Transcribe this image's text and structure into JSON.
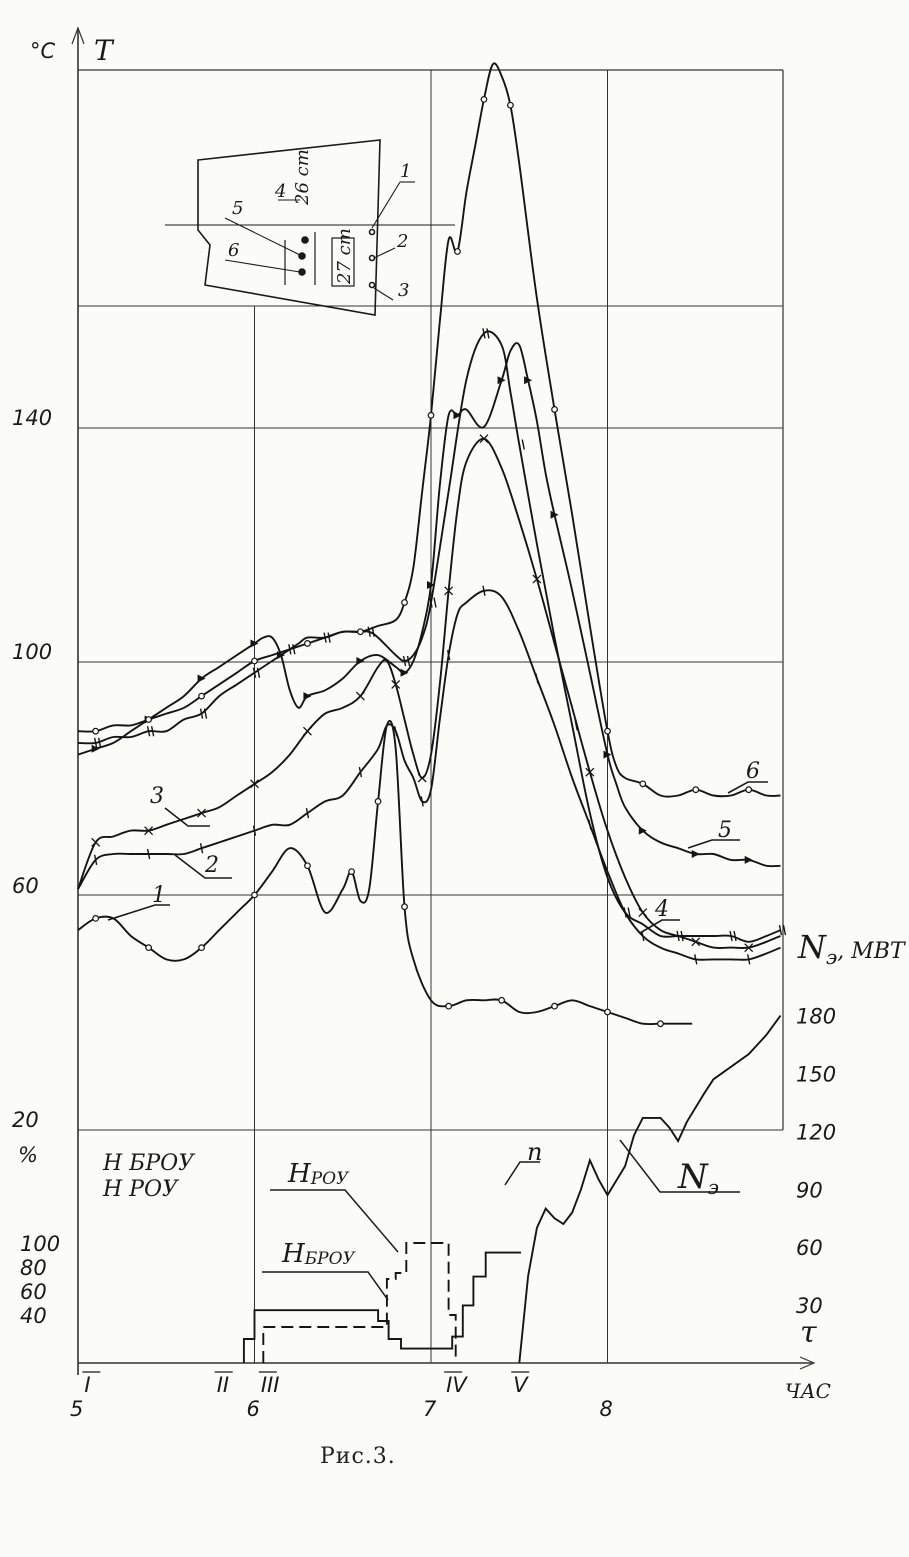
{
  "chart_data": {
    "type": "line",
    "title": "",
    "caption": "Рис.3.",
    "x_axis": {
      "label": "ЧАС",
      "ticks": [
        "5",
        "6",
        "7",
        "8"
      ],
      "range": [
        5.0,
        8.98
      ],
      "event_marks": [
        "I",
        "II",
        "III",
        "IV",
        "V"
      ]
    },
    "y_axis_temperature": {
      "unit": "°C",
      "symbol": "T",
      "ticks": [
        "20",
        "60",
        "100",
        "140"
      ],
      "range": [
        20,
        198
      ]
    },
    "y_axis_valve": {
      "unit": "%",
      "symbols": [
        "H БРОУ",
        "H РОУ"
      ],
      "ticks": [
        "40",
        "60",
        "80",
        "100"
      ],
      "range": [
        0,
        120
      ]
    },
    "y_axis_power": {
      "symbol": "τ",
      "ticks": [
        "30",
        "60",
        "90",
        "120",
        "150",
        "180"
      ],
      "range": [
        0,
        210
      ]
    },
    "labels": {
      "ne_mw": "N",
      "ne_mw_sub": "э",
      "ne_mw_unit": ", MBT",
      "ne": "N",
      "ne_sub": "э",
      "hrou": "H",
      "hrou_sub": "РОУ",
      "hbrou": "H",
      "hbrou_sub": "БРОУ",
      "n": "n"
    },
    "inset": {
      "labels": [
        "1",
        "2",
        "3",
        "4",
        "5",
        "6"
      ],
      "dim_26": "26 ст",
      "dim_27": "27 ст"
    },
    "temperature_series": [
      {
        "name": "1",
        "x": [
          5.0,
          5.1,
          5.2,
          5.3,
          5.4,
          5.5,
          5.6,
          5.7,
          5.8,
          5.9,
          6.0,
          6.1,
          6.2,
          6.3,
          6.4,
          6.5,
          6.55,
          6.6,
          6.65,
          6.7,
          6.75,
          6.8,
          6.85,
          6.9,
          7.0,
          7.1,
          7.2,
          7.3,
          7.4,
          7.5,
          7.6,
          7.7,
          7.8,
          7.9,
          8.0,
          8.1,
          8.2,
          8.3,
          8.4,
          8.48
        ],
        "y": [
          54,
          56,
          56,
          53,
          51,
          49,
          49,
          51,
          54,
          57,
          60,
          64,
          68,
          65,
          57,
          61,
          64,
          59,
          61,
          76,
          89,
          85,
          58,
          49,
          42,
          41,
          42,
          42,
          42,
          40,
          40,
          41,
          42,
          41,
          40,
          39,
          38,
          38,
          38,
          38
        ]
      },
      {
        "name": "2",
        "x": [
          5.0,
          5.1,
          5.2,
          5.3,
          5.4,
          5.5,
          5.6,
          5.7,
          5.8,
          5.9,
          6.0,
          6.1,
          6.2,
          6.3,
          6.4,
          6.5,
          6.6,
          6.7,
          6.75,
          6.8,
          6.85,
          6.9,
          6.95,
          7.0,
          7.05,
          7.1,
          7.15,
          7.2,
          7.3,
          7.4,
          7.5,
          7.6,
          7.7,
          7.8,
          7.9,
          8.0,
          8.1,
          8.2,
          8.3,
          8.4,
          8.5,
          8.6,
          8.7,
          8.8,
          8.9,
          8.98
        ],
        "y": [
          61,
          66,
          67,
          67,
          67,
          67,
          67,
          68,
          69,
          70,
          71,
          72,
          72,
          74,
          76,
          77,
          81,
          85,
          89,
          88,
          83,
          80,
          76,
          78,
          90,
          101,
          108,
          110,
          112,
          111,
          105,
          97,
          89,
          80,
          72,
          64,
          57,
          53,
          51,
          50,
          49,
          49,
          49,
          49,
          50,
          51
        ]
      },
      {
        "name": "3",
        "x": [
          5.0,
          5.1,
          5.2,
          5.3,
          5.4,
          5.5,
          5.6,
          5.7,
          5.8,
          5.9,
          6.0,
          6.1,
          6.2,
          6.3,
          6.4,
          6.5,
          6.6,
          6.7,
          6.75,
          6.8,
          6.85,
          6.9,
          6.95,
          7.0,
          7.05,
          7.1,
          7.15,
          7.2,
          7.3,
          7.4,
          7.5,
          7.6,
          7.7,
          7.8,
          7.9,
          8.0,
          8.1,
          8.2,
          8.3,
          8.4,
          8.5,
          8.6,
          8.7,
          8.8,
          8.9,
          8.98
        ],
        "y": [
          61,
          69,
          70,
          71,
          71,
          72,
          73,
          74,
          75,
          77,
          79,
          81,
          84,
          88,
          91,
          92,
          94,
          99,
          100,
          96,
          90,
          84,
          80,
          84,
          96,
          112,
          126,
          134,
          138,
          133,
          124,
          114,
          103,
          92,
          81,
          71,
          63,
          57,
          54,
          53,
          52,
          51,
          51,
          51,
          52,
          53
        ]
      },
      {
        "name": "4",
        "x": [
          5.0,
          5.1,
          5.2,
          5.3,
          5.4,
          5.5,
          5.6,
          5.7,
          5.8,
          5.9,
          6.0,
          6.1,
          6.15,
          6.2,
          6.25,
          6.3,
          6.4,
          6.5,
          6.6,
          6.65,
          6.7,
          6.8,
          6.85,
          6.9,
          6.95,
          7.0,
          7.1,
          7.2,
          7.3,
          7.4,
          7.45,
          7.5,
          7.6,
          7.7,
          7.8,
          7.9,
          8.0,
          8.1,
          8.2,
          8.3,
          8.4,
          8.5,
          8.6,
          8.7,
          8.8,
          8.9,
          8.98
        ],
        "y": [
          86,
          86,
          87,
          87,
          88,
          88,
          90,
          91,
          94,
          96,
          98,
          100,
          101,
          102,
          103,
          104,
          104,
          105,
          105,
          105,
          104,
          101,
          100,
          101,
          104,
          110,
          129,
          148,
          156,
          154,
          146,
          137,
          120,
          104,
          89,
          74,
          63,
          57,
          55,
          53,
          53,
          53,
          53,
          53,
          52,
          53,
          54
        ]
      },
      {
        "name": "5",
        "x": [
          5.0,
          5.1,
          5.2,
          5.3,
          5.4,
          5.5,
          5.6,
          5.7,
          5.8,
          5.9,
          6.0,
          6.05,
          6.1,
          6.15,
          6.2,
          6.25,
          6.3,
          6.4,
          6.5,
          6.6,
          6.7,
          6.8,
          6.85,
          6.9,
          6.95,
          7.0,
          7.05,
          7.1,
          7.15,
          7.2,
          7.3,
          7.4,
          7.45,
          7.5,
          7.55,
          7.6,
          7.65,
          7.7,
          7.8,
          7.9,
          8.0,
          8.05,
          8.1,
          8.2,
          8.3,
          8.4,
          8.5,
          8.6,
          8.7,
          8.8,
          8.9,
          8.98
        ],
        "y": [
          84,
          85,
          86,
          88,
          90,
          92,
          94,
          97,
          99,
          101,
          103,
          104,
          104,
          101,
          95,
          92,
          94,
          95,
          97,
          100,
          101,
          99,
          98,
          100,
          105,
          113,
          130,
          142,
          142,
          143,
          140,
          148,
          153,
          154,
          148,
          141,
          132,
          125,
          112,
          98,
          84,
          79,
          75,
          71,
          69,
          68,
          67,
          67,
          66,
          66,
          65,
          65
        ]
      },
      {
        "name": "6",
        "x": [
          5.0,
          5.1,
          5.2,
          5.3,
          5.4,
          5.5,
          5.6,
          5.7,
          5.8,
          5.9,
          6.0,
          6.1,
          6.2,
          6.3,
          6.4,
          6.5,
          6.6,
          6.7,
          6.8,
          6.85,
          6.9,
          6.95,
          7.0,
          7.05,
          7.1,
          7.15,
          7.2,
          7.25,
          7.3,
          7.35,
          7.4,
          7.45,
          7.5,
          7.6,
          7.7,
          7.8,
          7.9,
          8.0,
          8.05,
          8.1,
          8.2,
          8.3,
          8.4,
          8.5,
          8.6,
          8.7,
          8.8,
          8.9,
          8.98
        ],
        "y": [
          88,
          88,
          89,
          89,
          90,
          91,
          92,
          94,
          96,
          98,
          100,
          101,
          102,
          103,
          104,
          105,
          105,
          106,
          107,
          110,
          116,
          129,
          142,
          158,
          172,
          170,
          180,
          188,
          196,
          202,
          200,
          195,
          185,
          162,
          143,
          125,
          106,
          88,
          82,
          80,
          79,
          77,
          77,
          78,
          77,
          77,
          78,
          77,
          77
        ]
      }
    ],
    "lower_series": [
      {
        "name": "H РОУ",
        "axis": "%",
        "steps": [
          [
            6.05,
            0
          ],
          [
            6.05,
            30
          ],
          [
            6.75,
            30
          ],
          [
            6.75,
            70
          ],
          [
            6.8,
            70
          ],
          [
            6.8,
            75
          ],
          [
            6.86,
            75
          ],
          [
            6.86,
            100
          ],
          [
            7.1,
            100
          ],
          [
            7.1,
            40
          ],
          [
            7.14,
            40
          ],
          [
            7.14,
            0
          ]
        ]
      },
      {
        "name": "H БРОУ",
        "axis": "%",
        "steps": [
          [
            5.94,
            0
          ],
          [
            5.94,
            20
          ],
          [
            6.0,
            20
          ],
          [
            6.0,
            44
          ],
          [
            6.7,
            44
          ],
          [
            6.7,
            35
          ],
          [
            6.76,
            35
          ],
          [
            6.76,
            20
          ],
          [
            6.83,
            20
          ],
          [
            6.83,
            12
          ],
          [
            7.12,
            12
          ],
          [
            7.12,
            22
          ],
          [
            7.18,
            22
          ],
          [
            7.18,
            48
          ],
          [
            7.24,
            48
          ],
          [
            7.24,
            72
          ],
          [
            7.31,
            72
          ],
          [
            7.31,
            92
          ],
          [
            7.45,
            92
          ],
          [
            7.45,
            92
          ],
          [
            7.51,
            92
          ]
        ]
      },
      {
        "name": "Nэ",
        "axis": "τ",
        "x": [
          7.5,
          7.55,
          7.6,
          7.65,
          7.7,
          7.75,
          7.8,
          7.85,
          7.9,
          7.95,
          8.0,
          8.1,
          8.15,
          8.2,
          8.3,
          8.35,
          8.4,
          8.45,
          8.55,
          8.6,
          8.8,
          8.9,
          8.98
        ],
        "y": [
          0,
          45,
          70,
          80,
          75,
          72,
          78,
          90,
          105,
          95,
          87,
          102,
          118,
          127,
          127,
          122,
          115,
          125,
          140,
          147,
          160,
          170,
          180
        ]
      }
    ]
  }
}
